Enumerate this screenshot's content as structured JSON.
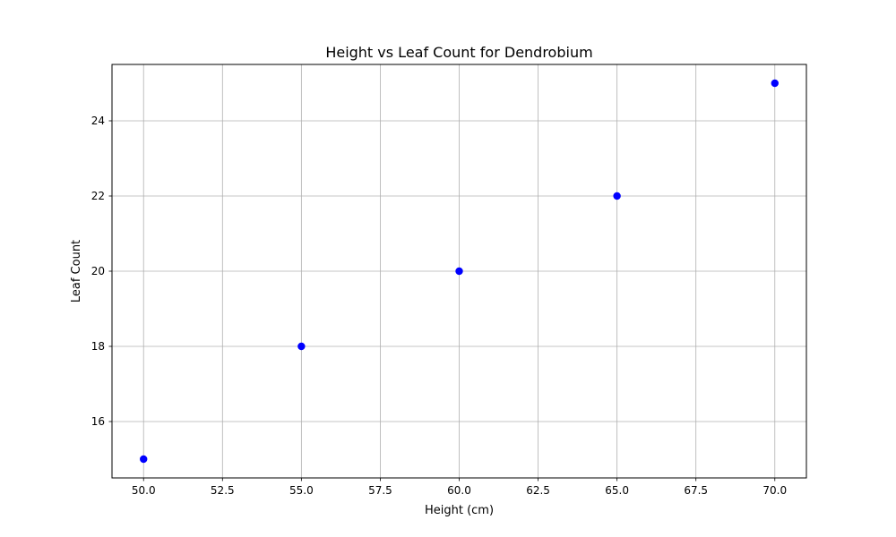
{
  "chart_data": {
    "type": "scatter",
    "title": "Height vs Leaf Count for Dendrobium",
    "xlabel": "Height (cm)",
    "ylabel": "Leaf Count",
    "xlim": [
      49.0,
      71.0
    ],
    "ylim": [
      14.5,
      25.5
    ],
    "xticks": [
      50.0,
      52.5,
      55.0,
      57.5,
      60.0,
      62.5,
      65.0,
      67.5,
      70.0
    ],
    "xtick_labels": [
      "50.0",
      "52.5",
      "55.0",
      "57.5",
      "60.0",
      "62.5",
      "65.0",
      "67.5",
      "70.0"
    ],
    "yticks": [
      16,
      18,
      20,
      22,
      24
    ],
    "ytick_labels": [
      "16",
      "18",
      "20",
      "22",
      "24"
    ],
    "grid": true,
    "series": [
      {
        "color": "#0000ff",
        "points": [
          {
            "x": 50,
            "y": 15
          },
          {
            "x": 55,
            "y": 18
          },
          {
            "x": 60,
            "y": 20
          },
          {
            "x": 65,
            "y": 22
          },
          {
            "x": 70,
            "y": 25
          }
        ]
      }
    ],
    "colors": {
      "grid": "#b0b0b0",
      "axes": "#000000"
    }
  }
}
